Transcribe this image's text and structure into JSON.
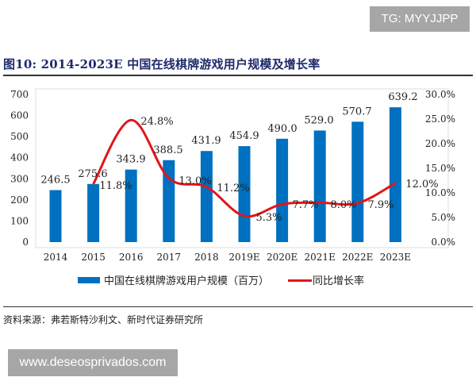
{
  "watermark_top": "TG: MYYJJPP",
  "watermark_bottom": "www.deseosprivados.com",
  "figure_title": "图10:   2014-2023E 中国在线棋牌游戏用户规模及增长率",
  "source": "资料来源：弗若斯特沙利文、新时代证券研究所",
  "colors": {
    "bar": "#0070c0",
    "line": "#e0161b",
    "title": "#1f2a6b"
  },
  "chart_data": {
    "type": "bar+line",
    "categories": [
      "2014",
      "2015",
      "2016",
      "2017",
      "2018",
      "2019E",
      "2020E",
      "2021E",
      "2022E",
      "2023E"
    ],
    "series": [
      {
        "name": "中国在线棋牌游戏用户规模（百万）",
        "type": "bar",
        "axis": "left",
        "values": [
          246.5,
          275.6,
          343.9,
          388.5,
          431.9,
          454.9,
          490.0,
          529.0,
          570.7,
          639.2
        ],
        "labels": [
          "246.5",
          "275.6",
          "343.9",
          "388.5",
          "431.9",
          "454.9",
          "490.0",
          "529.0",
          "570.7",
          "639.2"
        ]
      },
      {
        "name": "同比增长率",
        "type": "line",
        "axis": "right",
        "values": [
          null,
          11.8,
          24.8,
          13.0,
          11.2,
          5.3,
          7.7,
          8.0,
          7.9,
          12.0
        ],
        "labels": [
          "",
          "11.8%",
          "24.8%",
          "13.0%",
          "11.2%",
          "5.3%",
          "7.7%",
          "8.0%",
          "7.9%",
          "12.0%"
        ]
      }
    ],
    "y_left": {
      "range": [
        0,
        700
      ],
      "ticks": [
        "0",
        "100",
        "200",
        "300",
        "400",
        "500",
        "600",
        "700"
      ]
    },
    "y_right": {
      "range": [
        0,
        30
      ],
      "ticks": [
        "0.0%",
        "5.0%",
        "10.0%",
        "15.0%",
        "20.0%",
        "25.0%",
        "30.0%"
      ]
    },
    "legend_position": "bottom",
    "grid": false
  }
}
